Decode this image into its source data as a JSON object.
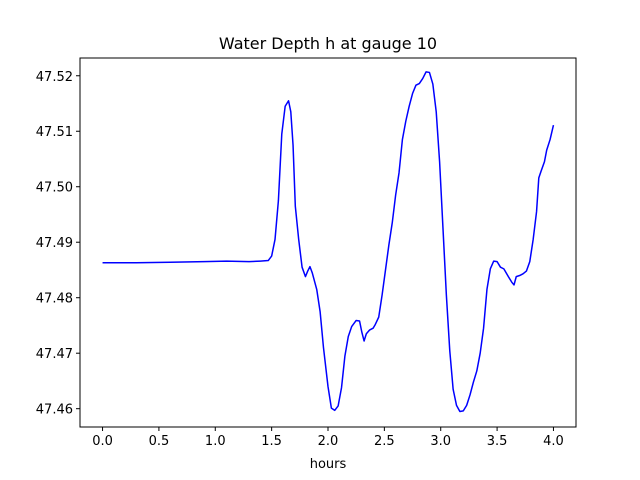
{
  "chart_data": {
    "type": "line",
    "title": "Water Depth h at gauge 10",
    "xlabel": "hours",
    "ylabel": "",
    "xlim": [
      -0.2,
      4.2
    ],
    "ylim": [
      47.4567,
      47.5232
    ],
    "xticks": [
      0.0,
      0.5,
      1.0,
      1.5,
      2.0,
      2.5,
      3.0,
      3.5,
      4.0
    ],
    "xtick_labels": [
      "0.0",
      "0.5",
      "1.0",
      "1.5",
      "2.0",
      "2.5",
      "3.0",
      "3.5",
      "4.0"
    ],
    "yticks": [
      47.46,
      47.47,
      47.48,
      47.49,
      47.5,
      47.51,
      47.52
    ],
    "ytick_labels": [
      "47.46",
      "47.47",
      "47.48",
      "47.49",
      "47.50",
      "47.51",
      "47.52"
    ],
    "grid": false,
    "series": [
      {
        "color": "#0000ff",
        "x": [
          0.0,
          0.3,
          0.6,
          0.9,
          1.1,
          1.3,
          1.4,
          1.47,
          1.5,
          1.53,
          1.56,
          1.59,
          1.62,
          1.65,
          1.67,
          1.69,
          1.71,
          1.74,
          1.77,
          1.8,
          1.82,
          1.84,
          1.86,
          1.9,
          1.93,
          1.96,
          2.0,
          2.03,
          2.06,
          2.09,
          2.12,
          2.15,
          2.18,
          2.21,
          2.25,
          2.28,
          2.3,
          2.32,
          2.34,
          2.37,
          2.4,
          2.42,
          2.45,
          2.48,
          2.51,
          2.54,
          2.57,
          2.6,
          2.63,
          2.66,
          2.69,
          2.72,
          2.75,
          2.78,
          2.81,
          2.84,
          2.87,
          2.9,
          2.93,
          2.96,
          2.99,
          3.02,
          3.05,
          3.08,
          3.11,
          3.14,
          3.17,
          3.2,
          3.23,
          3.26,
          3.29,
          3.32,
          3.35,
          3.38,
          3.41,
          3.44,
          3.47,
          3.5,
          3.53,
          3.56,
          3.58,
          3.6,
          3.63,
          3.65,
          3.67,
          3.7,
          3.73,
          3.76,
          3.79,
          3.82,
          3.85,
          3.87,
          3.89,
          3.92,
          3.94,
          3.97,
          4.0
        ],
        "y": [
          47.4863,
          47.4863,
          47.4864,
          47.4865,
          47.4866,
          47.4865,
          47.4866,
          47.4867,
          47.4875,
          47.4905,
          47.4975,
          47.5095,
          47.5145,
          47.5155,
          47.5135,
          47.5075,
          47.4965,
          47.4905,
          47.4855,
          47.4838,
          47.4848,
          47.4856,
          47.4845,
          47.4815,
          47.4775,
          47.471,
          47.464,
          47.4601,
          47.4597,
          47.4605,
          47.4638,
          47.4695,
          47.473,
          47.4748,
          47.4759,
          47.4758,
          47.4738,
          47.4722,
          47.4735,
          47.4742,
          47.4745,
          47.4752,
          47.4765,
          47.4805,
          47.485,
          47.4895,
          47.4935,
          47.4985,
          47.5025,
          47.5085,
          47.5118,
          47.5145,
          47.5168,
          47.5183,
          47.5186,
          47.5195,
          47.5207,
          47.5206,
          47.5185,
          47.5135,
          47.5045,
          47.4925,
          47.4805,
          47.4705,
          47.4635,
          47.4606,
          47.4595,
          47.4596,
          47.4606,
          47.4625,
          47.4648,
          47.4668,
          47.47,
          47.4745,
          47.4815,
          47.4852,
          47.4866,
          47.4865,
          47.4855,
          47.4852,
          47.4845,
          47.4838,
          47.4828,
          47.4823,
          47.4838,
          47.484,
          47.4843,
          47.4848,
          47.4865,
          47.4905,
          47.4955,
          47.5016,
          47.5028,
          47.5045,
          47.5066,
          47.5085,
          47.5111
        ]
      }
    ]
  }
}
